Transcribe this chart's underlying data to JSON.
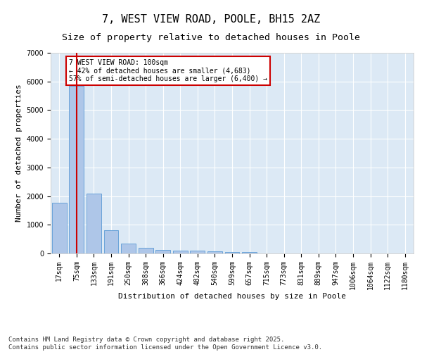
{
  "title": "7, WEST VIEW ROAD, POOLE, BH15 2AZ",
  "subtitle": "Size of property relative to detached houses in Poole",
  "xlabel": "Distribution of detached houses by size in Poole",
  "ylabel": "Number of detached properties",
  "categories": [
    "17sqm",
    "75sqm",
    "133sqm",
    "191sqm",
    "250sqm",
    "308sqm",
    "366sqm",
    "424sqm",
    "482sqm",
    "540sqm",
    "599sqm",
    "657sqm",
    "715sqm",
    "773sqm",
    "831sqm",
    "889sqm",
    "947sqm",
    "1006sqm",
    "1064sqm",
    "1122sqm",
    "1180sqm"
  ],
  "values": [
    1780,
    5850,
    2080,
    820,
    340,
    190,
    115,
    100,
    90,
    70,
    55,
    40,
    0,
    0,
    0,
    0,
    0,
    0,
    0,
    0,
    0
  ],
  "bar_color": "#aec6e8",
  "bar_edgecolor": "#5b9bd5",
  "background_color": "#dce9f5",
  "grid_color": "#ffffff",
  "vline_x": 1,
  "vline_color": "#cc0000",
  "annotation_text": "7 WEST VIEW ROAD: 100sqm\n← 42% of detached houses are smaller (4,683)\n57% of semi-detached houses are larger (6,400) →",
  "annotation_box_color": "#cc0000",
  "ylim": [
    0,
    7000
  ],
  "yticks": [
    0,
    1000,
    2000,
    3000,
    4000,
    5000,
    6000,
    7000
  ],
  "footer": "Contains HM Land Registry data © Crown copyright and database right 2025.\nContains public sector information licensed under the Open Government Licence v3.0.",
  "title_fontsize": 11,
  "subtitle_fontsize": 9.5,
  "label_fontsize": 8,
  "tick_fontsize": 7,
  "footer_fontsize": 6.5,
  "annotation_fontsize": 7
}
